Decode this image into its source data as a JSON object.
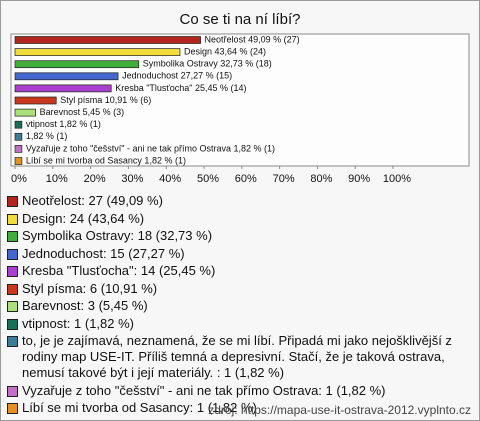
{
  "chart_data": {
    "type": "bar",
    "orientation": "horizontal",
    "title": "Co se ti na ní líbí?",
    "values": [
      49.09,
      43.64,
      32.73,
      27.27,
      25.45,
      10.91,
      5.45,
      1.82,
      1.82,
      1.82,
      1.82
    ],
    "value_labels": [
      "Neotřelost 49,09 % (27)",
      "Design 43,64 % (24)",
      "Symbolika Ostravy 32,73 % (18)",
      "Jednoduchost 27,27 % (15)",
      "Kresba \"Tlusťocha\" 25,45 % (14)",
      "Styl písma 10,91 % (6)",
      "Barevnost 5,45 % (3)",
      "vtipnost 1,82 % (1)",
      "1,82 % (1)",
      "Vyzařuje z toho \"češství\" - ani ne tak přímo Ostrava 1,82 % (1)",
      "Líbí se mi tvorba od Sasancy 1,82 % (1)"
    ],
    "colors": [
      "#b3261e",
      "#f2dc3c",
      "#3fae3a",
      "#4467cf",
      "#a93fcf",
      "#c8381c",
      "#a9e07a",
      "#17705a",
      "#3c7d98",
      "#c46fc6",
      "#e8901e"
    ],
    "xlim": [
      0,
      100
    ],
    "xticks": [
      {
        "value": 0,
        "label": "0%"
      },
      {
        "value": 10,
        "label": "10%"
      },
      {
        "value": 20,
        "label": "20%"
      },
      {
        "value": 30,
        "label": "30%"
      },
      {
        "value": 40,
        "label": "40%"
      },
      {
        "value": 50,
        "label": "50%"
      },
      {
        "value": 60,
        "label": "60%"
      },
      {
        "value": 70,
        "label": "70%"
      },
      {
        "value": 80,
        "label": "80%"
      },
      {
        "value": 90,
        "label": "90%"
      },
      {
        "value": 100,
        "label": "100%"
      }
    ],
    "legend": [
      "Neotřelost: 27 (49,09 %)",
      "Design: 24 (43,64 %)",
      "Symbolika Ostravy: 18 (32,73 %)",
      "Jednoduchost: 15 (27,27 %)",
      "Kresba \"Tlusťocha\": 14 (25,45 %)",
      "Styl písma: 6 (10,91 %)",
      "Barevnost: 3 (5,45 %)",
      "vtipnost: 1 (1,82 %)",
      "to, je je zajímavá, neznamená, že se mi líbí. Připadá mi jako nejošklivější z rodiny map USE-IT. Příliš temná a depresivní. Stačí, že je taková ostrava, nemusí takové být i její materiály. : 1 (1,82 %)",
      "Vyzařuje z toho \"češství\" - ani ne tak přímo Ostrava: 1 (1,82 %)",
      "Líbí se mi tvorba od Sasancy: 1 (1,82 %)"
    ],
    "source": "zdroj: https://mapa-use-it-ostrava-2012.vyplnto.cz"
  }
}
